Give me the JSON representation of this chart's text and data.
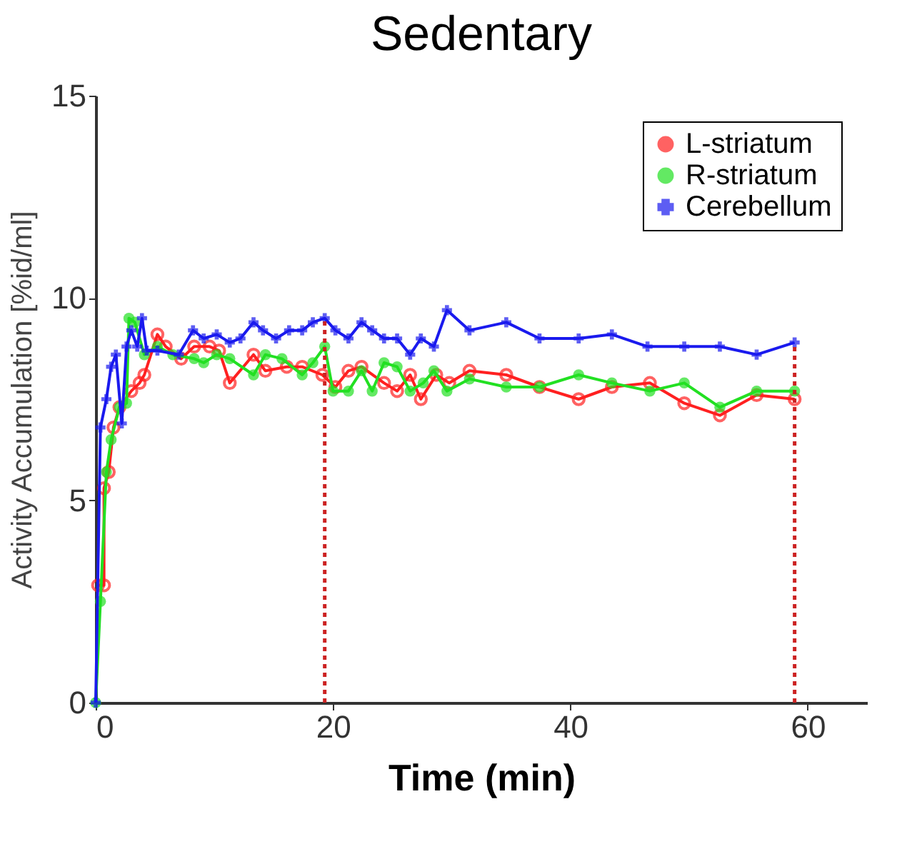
{
  "chart_data": {
    "type": "line",
    "title": "Sedentary",
    "xlabel": "Time (min)",
    "ylabel": "Activity Accumulation [%id/ml]",
    "xlim": [
      0,
      65
    ],
    "xticks": [
      0,
      20,
      40,
      60
    ],
    "ylim": [
      0,
      15
    ],
    "yticks": [
      0,
      5,
      10,
      15
    ],
    "grid": false,
    "legend": "top right",
    "line_style": "solid",
    "series": [
      {
        "name": "L-striatum",
        "color": "#ff2020",
        "marker": "circle",
        "x": [
          0.2,
          0.7,
          0.7,
          1.1,
          1.5,
          2,
          3,
          3.7,
          4.1,
          5.2,
          5.9,
          7.2,
          8.3,
          9.6,
          10.4,
          11.3,
          13.3,
          14.3,
          16.1,
          17.4,
          19.1,
          20.2,
          21.3,
          22.4,
          24.3,
          25.4,
          26.5,
          27.4,
          28.7,
          29.8,
          31.5,
          34.6,
          37.4,
          40.7,
          43.5,
          46.7,
          49.6,
          52.6,
          55.7,
          58.9
        ],
        "values": [
          2.9,
          2.9,
          5.3,
          5.7,
          6.8,
          7.3,
          7.7,
          7.9,
          8.1,
          9.1,
          8.8,
          8.5,
          8.8,
          8.8,
          8.7,
          7.9,
          8.6,
          8.2,
          8.3,
          8.3,
          8.1,
          7.8,
          8.2,
          8.3,
          7.9,
          7.7,
          8.1,
          7.5,
          8.1,
          7.9,
          8.2,
          8.1,
          7.8,
          7.5,
          7.8,
          7.9,
          7.4,
          7.1,
          7.6,
          7.5
        ]
      },
      {
        "name": "R-striatum",
        "color": "#22e022",
        "marker": "circle",
        "x": [
          0,
          0.4,
          0.9,
          1.3,
          2,
          2.6,
          2.8,
          3.3,
          4.1,
          5.2,
          6.5,
          8.3,
          9.1,
          10.2,
          11.3,
          13.3,
          14.3,
          15.7,
          17.4,
          18.3,
          19.3,
          20,
          21.3,
          22.4,
          23.3,
          24.3,
          25.4,
          26.5,
          27.6,
          28.5,
          29.6,
          31.5,
          34.6,
          37.4,
          40.7,
          43.5,
          46.7,
          49.6,
          52.6,
          55.7,
          58.9
        ],
        "values": [
          0,
          2.5,
          5.7,
          6.5,
          7.3,
          7.4,
          9.5,
          9.4,
          8.6,
          8.8,
          8.6,
          8.5,
          8.4,
          8.6,
          8.5,
          8.1,
          8.6,
          8.5,
          8.1,
          8.4,
          8.8,
          7.7,
          7.7,
          8.2,
          7.7,
          8.4,
          8.3,
          7.7,
          7.9,
          8.2,
          7.7,
          8.0,
          7.8,
          7.8,
          8.1,
          7.9,
          7.7,
          7.9,
          7.3,
          7.7,
          7.7
        ]
      },
      {
        "name": "Cerebellum",
        "color": "#1a1aee",
        "marker": "cross",
        "x": [
          0,
          0.4,
          0.9,
          1.3,
          1.7,
          2.2,
          2.6,
          3,
          3.5,
          3.9,
          4.3,
          5.2,
          7,
          8.2,
          9.1,
          10.2,
          11.3,
          12.2,
          13.3,
          14.1,
          15.2,
          16.3,
          17.4,
          18.3,
          19.3,
          20.2,
          21.3,
          22.4,
          23.3,
          24.3,
          25.4,
          26.5,
          27.4,
          28.5,
          29.6,
          31.5,
          34.6,
          37.4,
          40.7,
          43.5,
          46.5,
          49.6,
          52.6,
          55.7,
          58.9
        ],
        "values": [
          0,
          6.8,
          7.5,
          8.3,
          8.6,
          6.9,
          8.8,
          9.2,
          8.8,
          9.5,
          8.7,
          8.7,
          8.6,
          9.2,
          9.0,
          9.1,
          8.9,
          9.0,
          9.4,
          9.2,
          9.0,
          9.2,
          9.2,
          9.4,
          9.5,
          9.2,
          9.0,
          9.4,
          9.2,
          9.0,
          9.0,
          8.6,
          9.0,
          8.8,
          9.7,
          9.2,
          9.4,
          9.0,
          9.0,
          9.1,
          8.8,
          8.8,
          8.8,
          8.6,
          8.9
        ]
      },
      {
        "type": "line",
        "color": "#cc2222",
        "marker": "none",
        "line_style": "dotted",
        "x": [
          19.3,
          19.3
        ],
        "values": [
          0,
          9.5
        ]
      },
      {
        "type": "line",
        "color": "#cc2222",
        "marker": "none",
        "line_style": "dotted",
        "x": [
          58.9,
          58.9
        ],
        "values": [
          0,
          8.8
        ]
      }
    ]
  }
}
